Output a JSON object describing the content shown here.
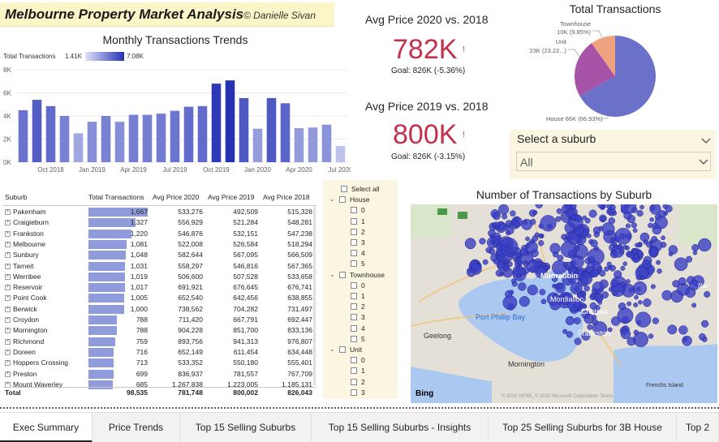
{
  "header": {
    "title": "Melbourne Property Market Analysis",
    "author": "© Danielle Sivan"
  },
  "monthly_chart": {
    "title": "Monthly Transactions Trends",
    "legend_label": "Total Transactions",
    "legend_min": "1.41K",
    "legend_max": "7.08K"
  },
  "kpi_2020": {
    "title": "Avg Price 2020 vs. 2018",
    "value": "782K",
    "indicator": "!",
    "goal": "Goal: 826K (-5.36%)"
  },
  "kpi_2019": {
    "title": "Avg Price 2019 vs. 2018",
    "value": "800K",
    "indicator": "!",
    "goal": "Goal: 826K (-3.15%)"
  },
  "pie": {
    "title": "Total Transactions"
  },
  "suburb_slicer": {
    "label": "Select a suburb",
    "value": "All"
  },
  "table": {
    "headers": [
      "Suburb",
      "Total Transactions",
      "Avg Price 2020",
      "Avg Price 2019",
      "Avg Price 2018"
    ],
    "rows": [
      [
        "Pakenham",
        "1,667",
        "533,276",
        "492,509",
        "515,328"
      ],
      [
        "Craigieburn",
        "1,327",
        "556,929",
        "521,284",
        "548,281"
      ],
      [
        "Frankston",
        "1,220",
        "546,876",
        "532,151",
        "547,238"
      ],
      [
        "Melbourne",
        "1,081",
        "522,008",
        "526,584",
        "518,294"
      ],
      [
        "Sunbury",
        "1,048",
        "582,644",
        "567,095",
        "566,509"
      ],
      [
        "Tarneit",
        "1,031",
        "558,297",
        "546,816",
        "567,365"
      ],
      [
        "Werribee",
        "1,019",
        "506,600",
        "507,528",
        "533,658"
      ],
      [
        "Reservoir",
        "1,017",
        "691,921",
        "676,645",
        "676,741"
      ],
      [
        "Point Cook",
        "1,005",
        "652,540",
        "642,456",
        "638,855"
      ],
      [
        "Berwick",
        "1,000",
        "738,562",
        "704,282",
        "731,497"
      ],
      [
        "Croydon",
        "788",
        "711,420",
        "667,791",
        "692,447"
      ],
      [
        "Mornington",
        "788",
        "904,228",
        "851,700",
        "833,136"
      ],
      [
        "Richmond",
        "759",
        "893,756",
        "941,313",
        "976,807"
      ],
      [
        "Doreen",
        "716",
        "652,149",
        "611,454",
        "634,448"
      ],
      [
        "Hoppers Crossing",
        "713",
        "533,352",
        "550,180",
        "555,401"
      ],
      [
        "Preston",
        "699",
        "836,937",
        "781,557",
        "767,709"
      ],
      [
        "Mount Waverley",
        "685",
        "1,267,838",
        "1,223,005",
        "1,185,131"
      ]
    ],
    "bar_values": [
      1667,
      1327,
      1220,
      1081,
      1048,
      1031,
      1019,
      1017,
      1005,
      1000,
      788,
      788,
      759,
      716,
      713,
      699,
      685
    ],
    "total": [
      "Total",
      "98,535",
      "781,748",
      "800,002",
      "826,043"
    ]
  },
  "type_slicer": {
    "select_all": "Select all",
    "groups": [
      {
        "name": "House",
        "rooms": [
          "0",
          "1",
          "2",
          "3",
          "4",
          "5"
        ]
      },
      {
        "name": "Townhouse",
        "rooms": [
          "0",
          "1",
          "2",
          "3",
          "4",
          "5"
        ]
      },
      {
        "name": "Unit",
        "rooms": [
          "0",
          "1",
          "2",
          "3"
        ]
      }
    ]
  },
  "map": {
    "title": "Number of Transactions by Suburb",
    "places": [
      "Moorabbin",
      "Mordialloc",
      "Chelsea",
      "Frankston",
      "Port Phillip Bay",
      "Geelong",
      "Mornington",
      "Frenchs Island",
      "Nar"
    ],
    "provider": "Bing",
    "copyright": "© 2020 HERE, © 2020 Microsoft Corporation  Terms"
  },
  "tabs": [
    "Exec Summary",
    "Price Trends",
    "Top 15 Selling Suburbs",
    "Top 15 Selling Suburbs - Insights",
    "Top 25 Selling Suburbs for 3B House",
    "Top 2"
  ],
  "colors": {
    "kpi_red": "#c4314b",
    "bar_scale_low": "#dfe3f7",
    "bar_scale_high": "#2632b4",
    "slicer_bg": "#fbf6e2",
    "title_bg": "#fbf6c8",
    "map_bubble": "#3a3fc4"
  },
  "chart_data": [
    {
      "type": "bar",
      "title": "Monthly Transactions Trends",
      "legend": "Total Transactions",
      "x_tick_labels": [
        "Oct 2018",
        "Jan 2019",
        "Apr 2019",
        "Jul 2019",
        "Oct 2019",
        "Jan 2020",
        "Apr 2020",
        "Jul 2020"
      ],
      "y_tick_labels": [
        "0K",
        "2K",
        "4K",
        "6K",
        "8K"
      ],
      "ylim": [
        0,
        8000
      ],
      "categories": [
        "Aug 2018",
        "Sep 2018",
        "Oct 2018",
        "Nov 2018",
        "Dec 2018",
        "Jan 2019",
        "Feb 2019",
        "Mar 2019",
        "Apr 2019",
        "May 2019",
        "Jun 2019",
        "Jul 2019",
        "Aug 2019",
        "Sep 2019",
        "Oct 2019",
        "Nov 2019",
        "Dec 2019",
        "Jan 2020",
        "Feb 2020",
        "Mar 2020",
        "Apr 2020",
        "May 2020",
        "Jun 2020",
        "Jul 2020"
      ],
      "values": [
        4500,
        5400,
        4850,
        4000,
        2500,
        3500,
        4000,
        3500,
        4100,
        4100,
        4200,
        4450,
        4800,
        4850,
        6800,
        7080,
        5550,
        2900,
        5550,
        5100,
        2950,
        3000,
        3250,
        1410
      ],
      "color_scale": {
        "min": 1410,
        "max": 7080
      }
    },
    {
      "type": "pie",
      "title": "Total Transactions",
      "slices": [
        {
          "label": "House",
          "value_label": "66K",
          "percent": 66.93
        },
        {
          "label": "Unit",
          "value_label": "23K",
          "percent": 23.22
        },
        {
          "label": "Townhouse",
          "value_label": "10K",
          "percent": 9.85
        }
      ],
      "data_labels": [
        "Townhouse\n10K (9.85%)",
        "Unit\n23K (23.22...)",
        "House 66K (66.93%)"
      ],
      "colors": [
        "#6b70c9",
        "#a653a8",
        "#efa27f"
      ]
    }
  ]
}
